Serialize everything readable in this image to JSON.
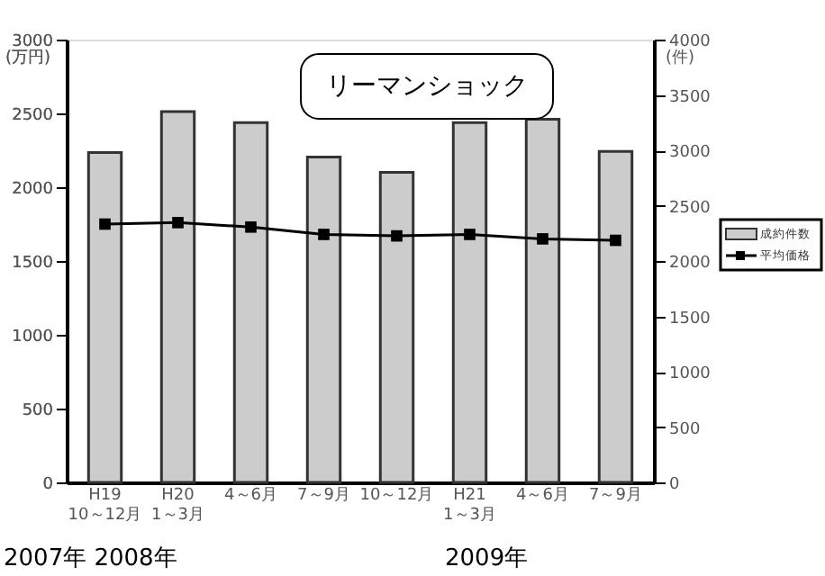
{
  "chart_data": {
    "type": "bar",
    "categories": [
      "H19\n10～12月",
      "H20\n1～3月",
      "4～6月",
      "7～9月",
      "10～12月",
      "H21\n1～3月",
      "4～6月",
      "7～9月"
    ],
    "series": [
      {
        "name": "成約件数",
        "axis": "y2",
        "color": "#cccccc",
        "values": [
          2980,
          3350,
          3250,
          2940,
          2800,
          3250,
          3280,
          2990
        ]
      },
      {
        "name": "平均価格",
        "type": "line",
        "color": "#000000",
        "marker": "square",
        "values": [
          1750,
          1760,
          1730,
          1680,
          1670,
          1680,
          1650,
          1640
        ]
      }
    ],
    "ylabel": "(万円)",
    "y2label": "(件)",
    "ylim": [
      0,
      3000
    ],
    "yticks": [
      0,
      500,
      1000,
      1500,
      2000,
      2500,
      3000
    ],
    "y2lim": [
      0,
      4000
    ],
    "y2ticks": [
      0,
      500,
      1000,
      1500,
      2000,
      2500,
      3000,
      3500,
      4000
    ],
    "annotations": [
      "リーマンショック",
      "2007年 2008年",
      "2009年"
    ],
    "legend": "right",
    "grid": false
  }
}
